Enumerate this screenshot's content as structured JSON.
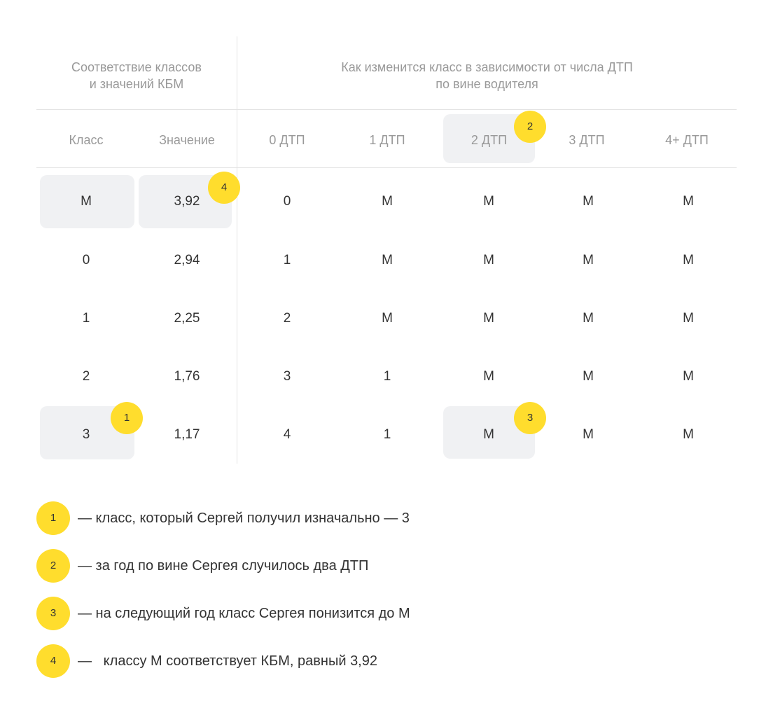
{
  "header": {
    "left_line1": "Соответствие классов",
    "left_line2": "и значений КБМ",
    "right_line1": "Как изменится класс в зависимости от числа ДТП",
    "right_line2": "по вине водителя"
  },
  "columns": [
    "Класс",
    "Значение",
    "0 ДТП",
    "1 ДТП",
    "2 ДТП",
    "3 ДТП",
    "4+ ДТП"
  ],
  "rows": [
    [
      "М",
      "3,92",
      "0",
      "М",
      "М",
      "М",
      "М"
    ],
    [
      "0",
      "2,94",
      "1",
      "М",
      "М",
      "М",
      "М"
    ],
    [
      "1",
      "2,25",
      "2",
      "М",
      "М",
      "М",
      "М"
    ],
    [
      "2",
      "1,76",
      "3",
      "1",
      "М",
      "М",
      "М"
    ],
    [
      "3",
      "1,17",
      "4",
      "1",
      "М",
      "М",
      "М"
    ]
  ],
  "badges": [
    "1",
    "2",
    "3",
    "4"
  ],
  "legend": [
    {
      "num": "1",
      "text": "— класс, который Сергей получил изначально — 3"
    },
    {
      "num": "2",
      "text": "— за год по вине Сергея случилось два ДТП"
    },
    {
      "num": "3",
      "text": "— на следующий год класс Сергея понизится до М"
    },
    {
      "num": "4",
      "text": "—   классу М соответствует КБМ, равный 3,92"
    }
  ],
  "colors": {
    "accent_yellow": "#ffdd2d",
    "highlight_gray": "#f0f1f3",
    "header_gray": "#999999"
  }
}
